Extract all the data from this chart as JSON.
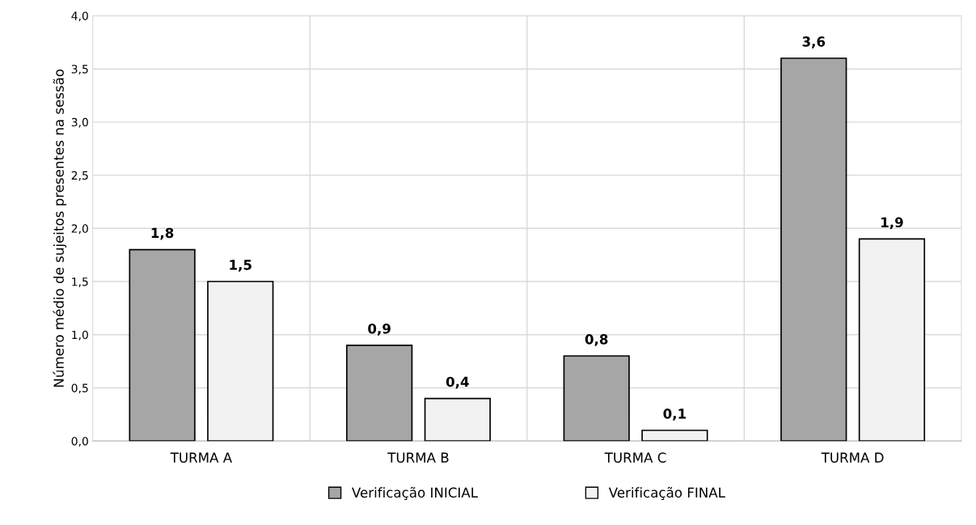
{
  "chart_data": {
    "type": "bar",
    "ylabel": "Número médio de sujeitos presentes na sessão",
    "categories": [
      "TURMA A",
      "TURMA B",
      "TURMA C",
      "TURMA D"
    ],
    "series": [
      {
        "name": "Verificação INICIAL",
        "color": "#a6a6a6",
        "values": [
          1.8,
          0.9,
          0.8,
          3.6
        ],
        "value_labels": [
          "1,8",
          "0,9",
          "0,8",
          "3,6"
        ]
      },
      {
        "name": "Verificação FINAL",
        "color": "#f2f2f2",
        "values": [
          1.5,
          0.4,
          0.1,
          1.9
        ],
        "value_labels": [
          "1,5",
          "0,4",
          "0,1",
          "1,9"
        ]
      }
    ],
    "ylim": [
      0,
      4
    ],
    "yticks": [
      {
        "value": 0,
        "label": "0,0"
      },
      {
        "value": 0.5,
        "label": "0,5"
      },
      {
        "value": 1,
        "label": "1,0"
      },
      {
        "value": 1.5,
        "label": "1,5"
      },
      {
        "value": 2,
        "label": "2,0"
      },
      {
        "value": 2.5,
        "label": "2,5"
      },
      {
        "value": 3,
        "label": "3,0"
      },
      {
        "value": 3.5,
        "label": "3,5"
      },
      {
        "value": 4,
        "label": "4,0"
      }
    ],
    "grid": true,
    "legend": "bottom"
  }
}
